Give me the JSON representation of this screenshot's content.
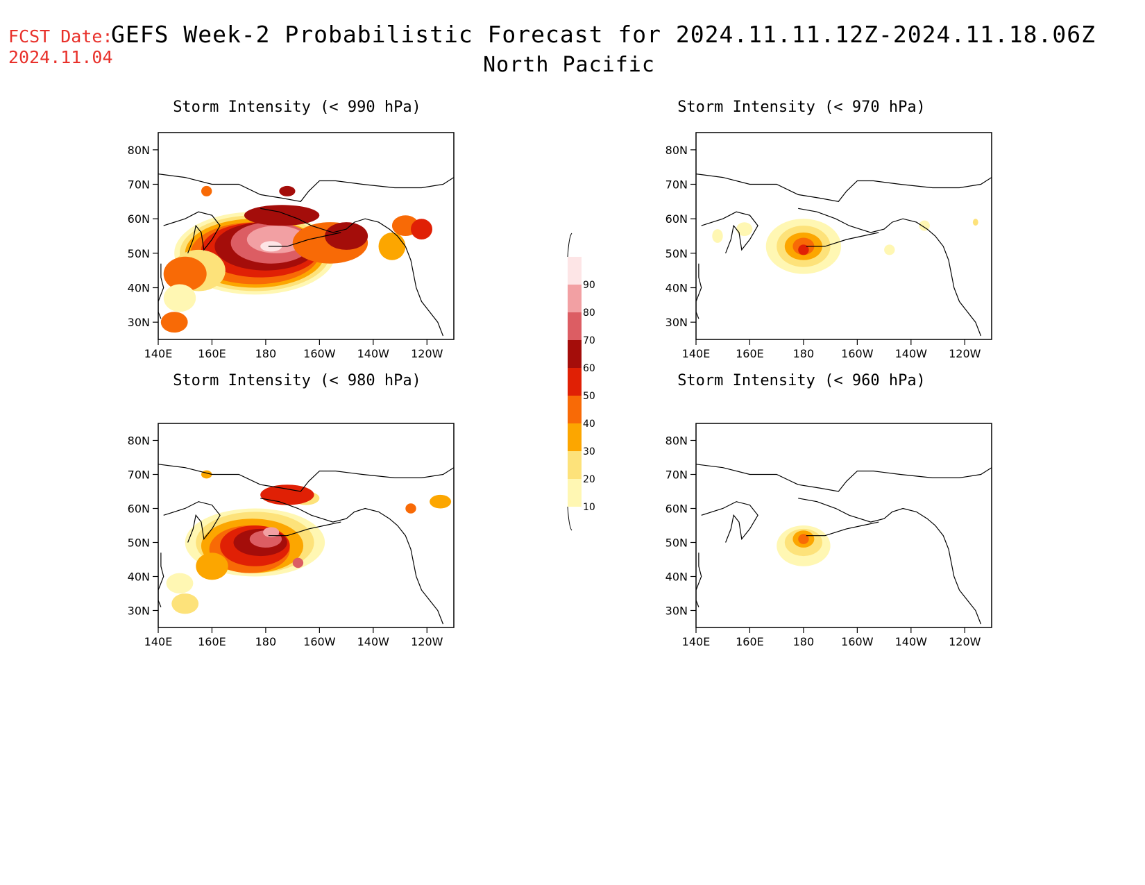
{
  "header": {
    "fcst_label": "FCST Date:",
    "fcst_date": "2024.11.04",
    "title": "GEFS Week-2 Probabilistic Forecast for 2024.11.11.12Z-2024.11.18.06Z",
    "subtitle": "North Pacific"
  },
  "axes": {
    "lat_labels": [
      "80N",
      "70N",
      "60N",
      "50N",
      "40N",
      "30N"
    ],
    "lon_labels": [
      "140E",
      "160E",
      "180",
      "160W",
      "140W",
      "120W"
    ]
  },
  "colorbar": {
    "levels": [
      "10",
      "20",
      "30",
      "40",
      "50",
      "60",
      "70",
      "80",
      "90"
    ],
    "colors": [
      "#fff7b3",
      "#fde27a",
      "#fca600",
      "#f86a06",
      "#e02005",
      "#a40d0a",
      "#dc5d63",
      "#f2a0a3",
      "#fde5e6"
    ]
  },
  "panels": [
    {
      "id": "p990",
      "title": "Storm Intensity (< 990 hPa)",
      "threshold_hpa": 990,
      "peak_probability_pct": 90
    },
    {
      "id": "p970",
      "title": "Storm Intensity (< 970 hPa)",
      "threshold_hpa": 970,
      "peak_probability_pct": 60
    },
    {
      "id": "p980",
      "title": "Storm Intensity (< 980 hPa)",
      "threshold_hpa": 980,
      "peak_probability_pct": 80
    },
    {
      "id": "p960",
      "title": "Storm Intensity (< 960 hPa)",
      "threshold_hpa": 960,
      "peak_probability_pct": 50
    }
  ]
}
